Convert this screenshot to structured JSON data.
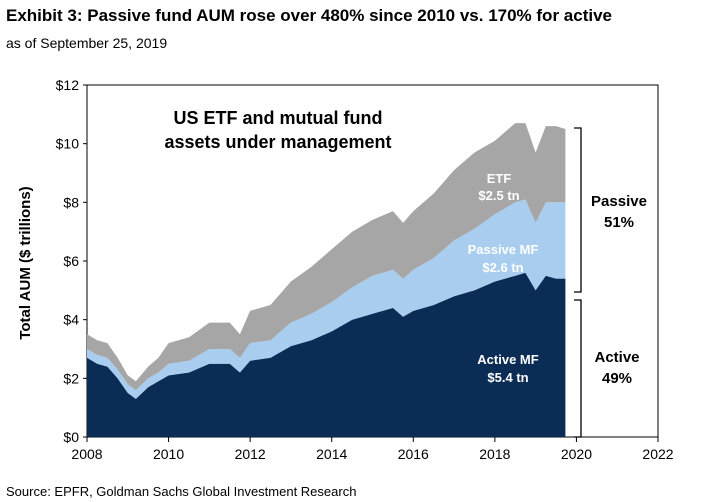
{
  "header": {
    "title": "Exhibit 3: Passive fund AUM rose over 480% since 2010 vs. 170% for active",
    "subtitle": "as of September 25, 2019"
  },
  "footer": {
    "source": "Source: EPFR, Goldman Sachs Global Investment Research"
  },
  "colors": {
    "active_mf": "#0b2d55",
    "passive_mf": "#a9cdef",
    "etf": "#a6a6a6",
    "axis": "#000000"
  },
  "chart_data": {
    "type": "area",
    "stacked": true,
    "title": "US ETF and mutual fund assets under management",
    "title_lines": [
      "US ETF and mutual fund",
      "assets under management"
    ],
    "ylabel": "Total AUM ($ trillions)",
    "xlabel": "",
    "xlim": [
      2008,
      2022
    ],
    "ylim": [
      0,
      12
    ],
    "x_ticks": [
      "2008",
      "2010",
      "2012",
      "2014",
      "2016",
      "2018",
      "2020",
      "2022"
    ],
    "y_ticks": [
      "$0",
      "$2",
      "$4",
      "$6",
      "$8",
      "$10",
      "$12"
    ],
    "grid": false,
    "x": [
      2008.0,
      2008.25,
      2008.5,
      2008.75,
      2009.0,
      2009.2,
      2009.5,
      2009.75,
      2010.0,
      2010.5,
      2011.0,
      2011.5,
      2011.75,
      2012.0,
      2012.5,
      2013.0,
      2013.5,
      2014.0,
      2014.5,
      2015.0,
      2015.5,
      2015.75,
      2016.0,
      2016.5,
      2017.0,
      2017.5,
      2018.0,
      2018.5,
      2018.75,
      2019.0,
      2019.25,
      2019.5,
      2019.73
    ],
    "series": [
      {
        "name": "Active MF",
        "values": [
          2.7,
          2.5,
          2.4,
          2.0,
          1.5,
          1.3,
          1.7,
          1.9,
          2.1,
          2.2,
          2.5,
          2.5,
          2.2,
          2.6,
          2.7,
          3.1,
          3.3,
          3.6,
          4.0,
          4.2,
          4.4,
          4.1,
          4.3,
          4.5,
          4.8,
          5.0,
          5.3,
          5.5,
          5.6,
          5.0,
          5.5,
          5.4,
          5.4
        ]
      },
      {
        "name": "Passive MF",
        "values": [
          0.3,
          0.3,
          0.3,
          0.3,
          0.3,
          0.3,
          0.3,
          0.3,
          0.4,
          0.4,
          0.5,
          0.5,
          0.5,
          0.6,
          0.6,
          0.8,
          0.9,
          1.0,
          1.1,
          1.3,
          1.3,
          1.3,
          1.4,
          1.6,
          1.9,
          2.1,
          2.3,
          2.5,
          2.5,
          2.3,
          2.5,
          2.6,
          2.6
        ]
      },
      {
        "name": "ETF",
        "values": [
          0.5,
          0.5,
          0.5,
          0.4,
          0.3,
          0.3,
          0.4,
          0.5,
          0.7,
          0.8,
          0.9,
          0.9,
          0.8,
          1.1,
          1.2,
          1.4,
          1.6,
          1.8,
          1.9,
          1.9,
          2.0,
          1.9,
          2.0,
          2.2,
          2.4,
          2.6,
          2.5,
          2.7,
          2.6,
          2.4,
          2.6,
          2.6,
          2.5
        ]
      }
    ],
    "annotations": {
      "etf_name": "ETF",
      "etf_value": "$2.5 tn",
      "passive_mf_name": "Passive MF",
      "passive_mf_value": "$2.6 tn",
      "active_mf_name": "Active MF",
      "active_mf_value": "$5.4 tn",
      "passive_side": "Passive",
      "passive_pct": "51%",
      "active_side": "Active",
      "active_pct": "49%"
    }
  }
}
